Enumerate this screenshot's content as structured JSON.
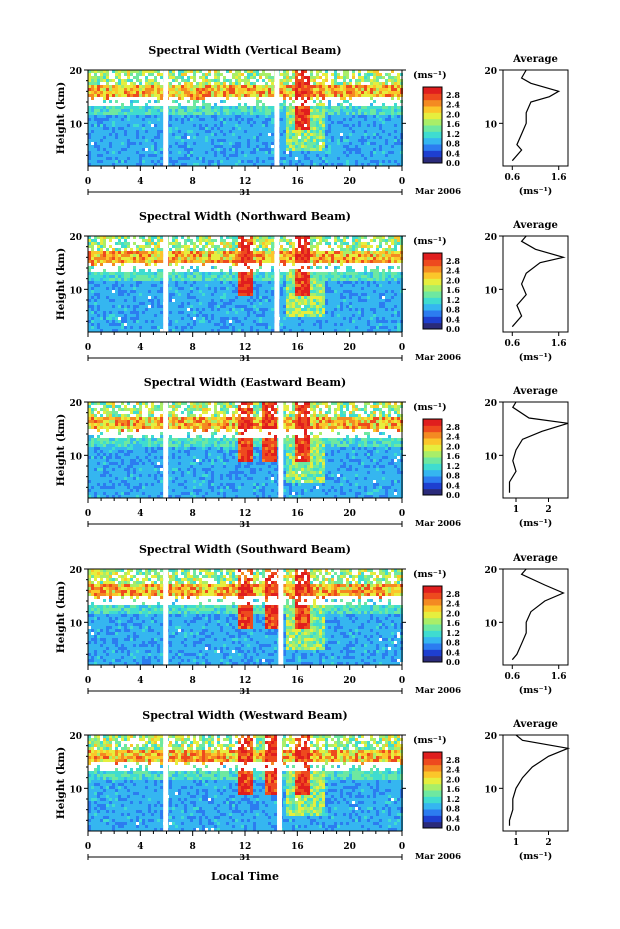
{
  "common": {
    "ylabel": "Height (km)",
    "xlabel": "Local Time",
    "unit": "(ms⁻¹)",
    "date_label": "Mar 2006",
    "day_label": "31",
    "avg_title": "Average",
    "avg_xlabel": "(ms⁻¹)",
    "colorbar_ticks": [
      "2.8",
      "2.4",
      "2.0",
      "1.6",
      "1.2",
      "0.8",
      "0.4",
      "0.0"
    ],
    "colors": [
      "#2a2a7a",
      "#1e3fd0",
      "#2c7cf0",
      "#35b6f0",
      "#3fdcd0",
      "#6ee8a0",
      "#a9ee68",
      "#e6ee3e",
      "#fbc62a",
      "#f48a22",
      "#ee4a1e",
      "#e01e1e"
    ]
  },
  "chart_data": [
    {
      "type": "heatmap",
      "title": "Spectral Width (Vertical Beam)",
      "x": {
        "ticks": [
          "0",
          "4",
          "8",
          "12",
          "16",
          "20",
          "0"
        ],
        "range": [
          0,
          24
        ],
        "unit": "hour"
      },
      "y": {
        "ticks": [
          "20",
          "10"
        ],
        "range": [
          2,
          20
        ],
        "unit": "km"
      },
      "gaps_hours": [
        5.9,
        14.4
      ],
      "peaks_hours": [
        16.3
      ],
      "average_profile": {
        "xticks": [
          "0.6",
          "1.6"
        ],
        "xrange": [
          0.4,
          1.8
        ],
        "points": [
          [
            0.9,
            20
          ],
          [
            0.8,
            18.5
          ],
          [
            1.0,
            17.5
          ],
          [
            1.6,
            16
          ],
          [
            1.4,
            15
          ],
          [
            1.0,
            14
          ],
          [
            0.9,
            12
          ],
          [
            0.9,
            10
          ],
          [
            0.8,
            8
          ],
          [
            0.7,
            6
          ],
          [
            0.8,
            5
          ],
          [
            0.6,
            3
          ]
        ]
      }
    },
    {
      "type": "heatmap",
      "title": "Spectral Width (Northward Beam)",
      "x": {
        "ticks": [
          "0",
          "4",
          "8",
          "12",
          "16",
          "20",
          "0"
        ],
        "range": [
          0,
          24
        ],
        "unit": "hour"
      },
      "y": {
        "ticks": [
          "20",
          "10"
        ],
        "range": [
          2,
          20
        ],
        "unit": "km"
      },
      "gaps_hours": [
        5.9,
        14.4
      ],
      "peaks_hours": [
        11.9,
        16.3
      ],
      "average_profile": {
        "xticks": [
          "0.6",
          "1.6"
        ],
        "xrange": [
          0.4,
          1.8
        ],
        "points": [
          [
            0.9,
            20
          ],
          [
            0.8,
            19
          ],
          [
            1.1,
            17.5
          ],
          [
            1.7,
            16
          ],
          [
            1.2,
            15
          ],
          [
            0.9,
            13
          ],
          [
            0.8,
            11
          ],
          [
            0.9,
            9
          ],
          [
            0.7,
            7
          ],
          [
            0.8,
            5
          ],
          [
            0.6,
            3
          ]
        ]
      }
    },
    {
      "type": "heatmap",
      "title": "Spectral Width (Eastward Beam)",
      "x": {
        "ticks": [
          "0",
          "4",
          "8",
          "12",
          "16",
          "20",
          "0"
        ],
        "range": [
          0,
          24
        ],
        "unit": "hour"
      },
      "y": {
        "ticks": [
          "20",
          "10"
        ],
        "range": [
          2,
          20
        ],
        "unit": "km"
      },
      "gaps_hours": [
        5.9,
        14.7
      ],
      "peaks_hours": [
        11.9,
        13.8,
        16.3
      ],
      "average_profile": {
        "xticks": [
          "1",
          "2"
        ],
        "xrange": [
          0.6,
          2.6
        ],
        "points": [
          [
            1.0,
            20
          ],
          [
            0.9,
            19
          ],
          [
            1.4,
            17
          ],
          [
            2.6,
            16
          ],
          [
            1.8,
            14.5
          ],
          [
            1.2,
            13
          ],
          [
            1.0,
            11
          ],
          [
            0.9,
            9
          ],
          [
            1.0,
            7
          ],
          [
            0.8,
            5
          ],
          [
            0.8,
            3
          ]
        ]
      }
    },
    {
      "type": "heatmap",
      "title": "Spectral Width (Southward Beam)",
      "x": {
        "ticks": [
          "0",
          "4",
          "8",
          "12",
          "16",
          "20",
          "0"
        ],
        "range": [
          0,
          24
        ],
        "unit": "hour"
      },
      "y": {
        "ticks": [
          "20",
          "10"
        ],
        "range": [
          2,
          20
        ],
        "unit": "km"
      },
      "gaps_hours": [
        5.9,
        14.7
      ],
      "peaks_hours": [
        11.9,
        13.9,
        16.3
      ],
      "average_profile": {
        "xticks": [
          "0.6",
          "1.6"
        ],
        "xrange": [
          0.4,
          1.8
        ],
        "points": [
          [
            0.9,
            20
          ],
          [
            0.8,
            19
          ],
          [
            1.3,
            17
          ],
          [
            1.7,
            15.5
          ],
          [
            1.3,
            14
          ],
          [
            1.0,
            12
          ],
          [
            0.9,
            10
          ],
          [
            0.9,
            8
          ],
          [
            0.8,
            6
          ],
          [
            0.7,
            4
          ],
          [
            0.6,
            3
          ]
        ]
      }
    },
    {
      "type": "heatmap",
      "title": "Spectral Width (Westward Beam)",
      "x": {
        "ticks": [
          "0",
          "4",
          "8",
          "12",
          "16",
          "20",
          "0"
        ],
        "range": [
          0,
          24
        ],
        "unit": "hour"
      },
      "y": {
        "ticks": [
          "20",
          "10"
        ],
        "range": [
          2,
          20
        ],
        "unit": "km"
      },
      "gaps_hours": [
        5.9,
        14.6
      ],
      "peaks_hours": [
        11.9,
        13.9,
        16.3
      ],
      "average_profile": {
        "xticks": [
          "1",
          "2"
        ],
        "xrange": [
          0.6,
          2.6
        ],
        "points": [
          [
            1.0,
            20
          ],
          [
            1.2,
            19
          ],
          [
            2.6,
            17.5
          ],
          [
            2.0,
            16
          ],
          [
            1.5,
            14
          ],
          [
            1.2,
            12
          ],
          [
            1.0,
            10
          ],
          [
            0.9,
            8
          ],
          [
            0.9,
            6
          ],
          [
            0.8,
            4
          ],
          [
            0.8,
            3
          ]
        ]
      }
    }
  ]
}
